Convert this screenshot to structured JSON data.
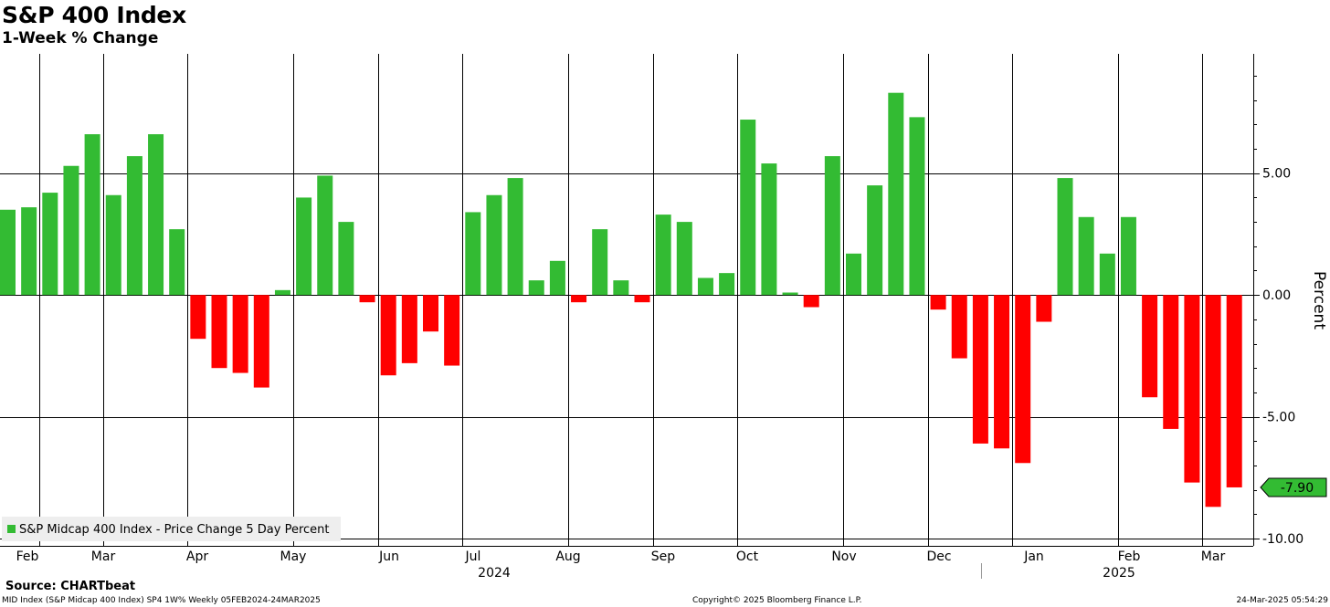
{
  "header": {
    "title": "S&P 400 Index",
    "subtitle": "1-Week % Change"
  },
  "footer": {
    "source": "Source: CHARTbeat",
    "left": "MID Index (S&P Midcap 400 Index) SP4 1W% Weekly 05FEB2024-24MAR2025",
    "center": "Copyright© 2025 Bloomberg Finance L.P.",
    "right": "24-Mar-2025 05:54:29"
  },
  "chart_data": {
    "type": "bar",
    "ylabel": "Percent",
    "ylim": [
      -10.3,
      9.9
    ],
    "yticks": [
      -10,
      -5,
      0,
      5
    ],
    "ytick_labels": [
      "-10.00",
      "-5.00",
      "0.00",
      "5.00"
    ],
    "month_labels": [
      "Feb",
      "Mar",
      "Apr",
      "May",
      "Jun",
      "Jul",
      "Aug",
      "Sep",
      "Oct",
      "Nov",
      "Dec",
      "Jan",
      "Feb",
      "Mar"
    ],
    "year_labels": [
      "2024",
      "2025"
    ],
    "legend": "S&P Midcap 400 Index - Price Change 5 Day Percent",
    "legend_position": "bottom-left",
    "last_value_label": "-7.90",
    "positive_color": "#33bb33",
    "negative_color": "#ff0000",
    "values": [
      3.5,
      3.6,
      4.2,
      5.3,
      6.6,
      4.1,
      5.7,
      6.6,
      2.7,
      -1.8,
      -3.0,
      -3.2,
      -3.8,
      0.2,
      4.0,
      4.9,
      3.0,
      -0.3,
      -3.3,
      -2.8,
      -1.5,
      -2.9,
      3.4,
      4.1,
      4.8,
      0.6,
      1.4,
      -0.3,
      2.7,
      0.6,
      -0.3,
      3.3,
      3.0,
      0.7,
      0.9,
      7.2,
      5.4,
      0.1,
      -0.5,
      5.7,
      1.7,
      4.5,
      8.3,
      7.3,
      -0.6,
      -2.6,
      -6.1,
      -6.3,
      -6.9,
      -1.1,
      4.8,
      3.2,
      1.7,
      3.2,
      -4.2,
      -5.5,
      -7.7,
      -8.7,
      -7.9
    ]
  }
}
